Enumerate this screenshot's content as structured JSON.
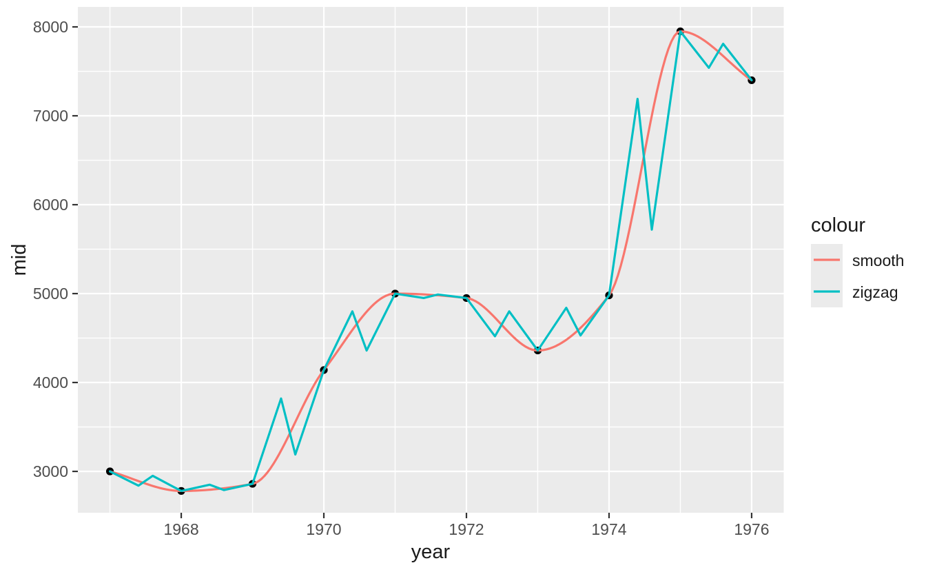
{
  "chart_data": {
    "type": "line",
    "title": "",
    "xlabel": "year",
    "ylabel": "mid",
    "xlim": [
      1966.55,
      1976.45
    ],
    "ylim": [
      2535,
      8225
    ],
    "grid": true,
    "x_ticks": {
      "values": [
        1968,
        1970,
        1972,
        1974,
        1976
      ],
      "labels": [
        "1968",
        "1970",
        "1972",
        "1974",
        "1976"
      ],
      "minor": [
        1967,
        1969,
        1971,
        1973,
        1975
      ]
    },
    "y_ticks": {
      "values": [
        3000,
        4000,
        5000,
        6000,
        7000,
        8000
      ],
      "labels": [
        "3000",
        "4000",
        "5000",
        "6000",
        "7000",
        "8000"
      ],
      "minor": [
        3500,
        4500,
        5500,
        6500,
        7500
      ]
    },
    "points": {
      "x": [
        1967,
        1968,
        1969,
        1970,
        1971,
        1972,
        1973,
        1974,
        1975,
        1976
      ],
      "y": [
        3000,
        2780,
        2860,
        4140,
        5000,
        4950,
        4360,
        4980,
        7950,
        7400
      ]
    },
    "series": [
      {
        "name": "smooth",
        "color": "#F8766D",
        "render": "spline",
        "x": [
          1967,
          1968,
          1969,
          1970,
          1971,
          1972,
          1973,
          1974,
          1975,
          1976
        ],
        "y": [
          3000,
          2780,
          2860,
          4140,
          5000,
          4950,
          4360,
          4980,
          7950,
          7400
        ]
      },
      {
        "name": "zigzag",
        "color": "#00BFC4",
        "render": "polyline",
        "x": [
          1967,
          1967.4,
          1967.6,
          1968,
          1968.4,
          1968.6,
          1969,
          1969.4,
          1969.6,
          1970,
          1970.4,
          1970.6,
          1971,
          1971.4,
          1971.6,
          1972,
          1972.4,
          1972.6,
          1973,
          1973.4,
          1973.6,
          1974,
          1974.4,
          1974.6,
          1975,
          1975.4,
          1975.6,
          1976
        ],
        "y": [
          3000,
          2840,
          2950,
          2780,
          2850,
          2790,
          2860,
          3820,
          3190,
          4140,
          4800,
          4360,
          5000,
          4950,
          4990,
          4950,
          4520,
          4800,
          4360,
          4840,
          4530,
          4980,
          7190,
          5720,
          7950,
          7540,
          7810,
          7400
        ]
      }
    ],
    "legend": {
      "title": "colour",
      "position": "right",
      "entries": [
        {
          "label": "smooth",
          "color": "#F8766D"
        },
        {
          "label": "zigzag",
          "color": "#00BFC4"
        }
      ]
    },
    "colors": {
      "panel_bg": "#EBEBEB",
      "grid": "#FFFFFF",
      "point": "#000000",
      "tick_mark": "#333333",
      "axis_text": "#4D4D4D",
      "axis_title": "#1A1A1A",
      "legend_key_bg": "#EBEBEB",
      "background": "#FFFFFF"
    }
  }
}
